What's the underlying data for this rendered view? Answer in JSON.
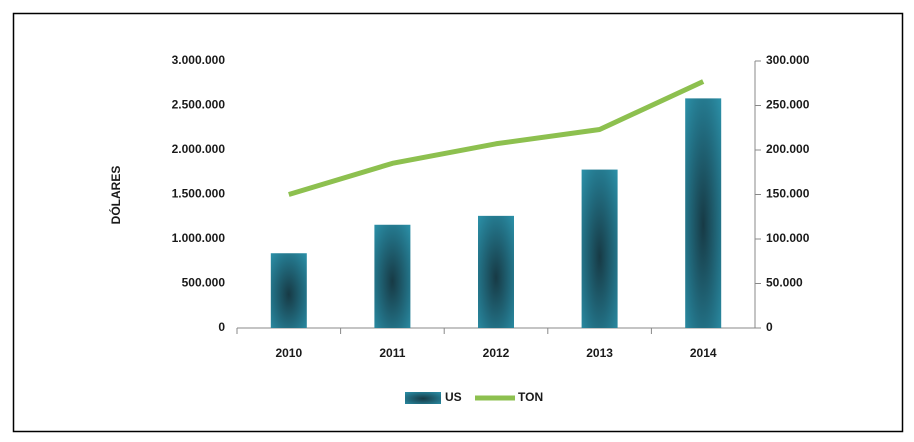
{
  "chart_data": {
    "type": "bar",
    "y_label": "DÓLARES",
    "categories": [
      "2010",
      "2011",
      "2012",
      "2013",
      "2014"
    ],
    "series": [
      {
        "name": "US",
        "type": "bar",
        "color": "#2a8ca3",
        "values": [
          840000,
          1160000,
          1260000,
          1780000,
          2580000
        ]
      },
      {
        "name": "TON",
        "type": "line",
        "axis": "y2",
        "color": "#8dc04f",
        "values": [
          150000,
          185000,
          207000,
          223000,
          277000
        ]
      }
    ],
    "ylim": [
      0,
      3000000
    ],
    "yticks": [
      0,
      {
        "value": 500000,
        "label": "500.000"
      },
      {
        "value": 1000000,
        "label": "1.000.000"
      },
      {
        "value": 1500000,
        "label": "1.500.000"
      },
      {
        "value": 2000000,
        "label": "2.000.000"
      },
      {
        "value": 2500000,
        "label": "2.500.000"
      },
      {
        "value": 3000000,
        "label": "3.000.000"
      }
    ],
    "y2lim": [
      0,
      300000
    ],
    "y2ticks": [
      0,
      {
        "value": 50000,
        "label": "50.000"
      },
      {
        "value": 100000,
        "label": "100.000"
      },
      {
        "value": 150000,
        "label": "150.000"
      },
      {
        "value": 200000,
        "label": "200.000"
      },
      {
        "value": 250000,
        "label": "250.000"
      },
      {
        "value": 300000,
        "label": "300.000"
      }
    ],
    "legend": "bottom"
  }
}
